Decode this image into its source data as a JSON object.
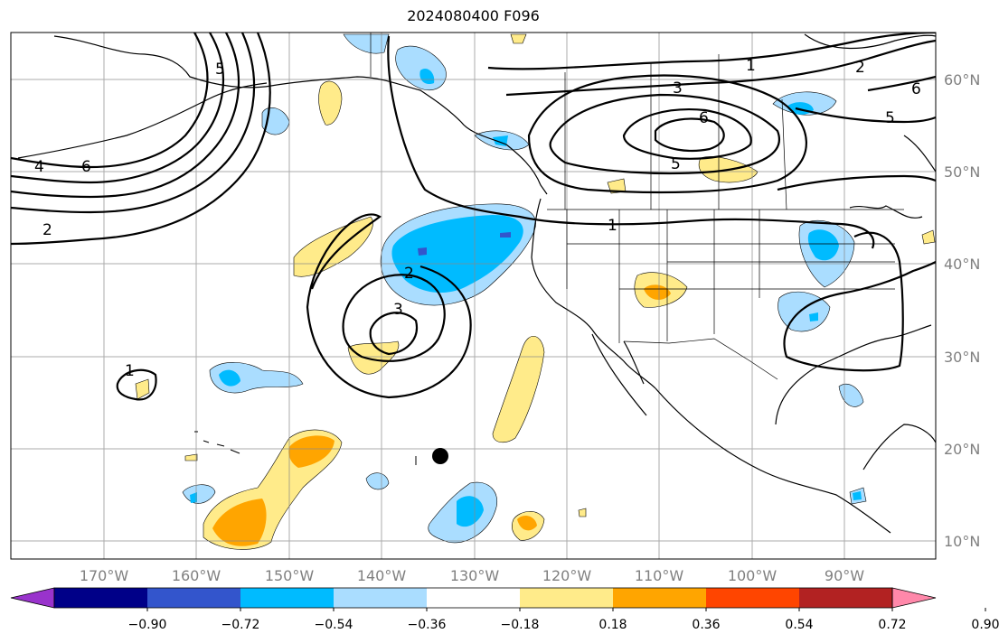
{
  "title": "2024080400 F096",
  "map": {
    "lon_ticks": [
      "170°W",
      "160°W",
      "150°W",
      "140°W",
      "130°W",
      "120°W",
      "110°W",
      "100°W",
      "90°W"
    ],
    "lat_ticks": [
      "60°N",
      "50°N",
      "40°N",
      "30°N",
      "20°N",
      "10°N"
    ],
    "contour_labels": [
      {
        "id": "c1",
        "text": "1"
      },
      {
        "id": "c2",
        "text": "3"
      },
      {
        "id": "c3",
        "text": "6"
      },
      {
        "id": "c4",
        "text": "5"
      },
      {
        "id": "c5",
        "text": "2"
      },
      {
        "id": "c6",
        "text": "5"
      },
      {
        "id": "c7",
        "text": "6"
      },
      {
        "id": "c8",
        "text": "4"
      },
      {
        "id": "c9",
        "text": "6"
      },
      {
        "id": "c10",
        "text": "2"
      },
      {
        "id": "c11",
        "text": "1"
      },
      {
        "id": "c12",
        "text": "2"
      },
      {
        "id": "c13",
        "text": "3"
      },
      {
        "id": "c14",
        "text": "1"
      },
      {
        "id": "c15",
        "text": "5"
      }
    ]
  },
  "colorbar": {
    "colors": [
      "#9933cc",
      "#000088",
      "#3355cc",
      "#00bbff",
      "#aaddff",
      "#ffffff",
      "#ffeb8a",
      "#ffa500",
      "#ff4500",
      "#b22222",
      "#ff88aa"
    ],
    "labels": [
      "−0.90",
      "−0.72",
      "−0.54",
      "−0.36",
      "−0.18",
      "0.18",
      "0.36",
      "0.54",
      "0.72",
      "0.90"
    ]
  }
}
